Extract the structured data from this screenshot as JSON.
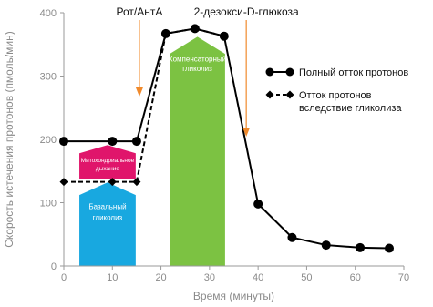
{
  "chart_data": {
    "type": "line",
    "xlabel": "Время (минуты)",
    "ylabel": "Скорость истечения протонов (пмоль/мин)",
    "xlim": [
      0,
      70
    ],
    "ylim": [
      0,
      400
    ],
    "x_ticks": [
      "0",
      "10",
      "20",
      "30",
      "40",
      "50",
      "60",
      "70"
    ],
    "y_ticks": [
      "0",
      "100",
      "200",
      "300",
      "400"
    ],
    "series": [
      {
        "name": "Полный отток протонов",
        "style": "solid-circle",
        "x": [
          0,
          10,
          15,
          21,
          27,
          33,
          40,
          47,
          54,
          61,
          67
        ],
        "y": [
          197,
          197,
          197,
          367,
          375,
          363,
          98,
          45,
          33,
          29,
          28
        ]
      },
      {
        "name": "Отток протонов вследствие гликолиза",
        "style": "dashed-diamond",
        "x": [
          0,
          10,
          15,
          21,
          27,
          33
        ],
        "y": [
          133,
          133,
          133,
          367,
          375,
          363
        ]
      }
    ],
    "legend": {
      "placement": "right",
      "solid_label": "Полный отток протонов",
      "dashed_label_line1": "Отток протонов",
      "dashed_label_line2": "вследствие гликолиза"
    },
    "annotations": {
      "injection_1": "Рот/АнтА",
      "injection_2": "2-дезокси-D-глюкоза",
      "injection_1_x": 15,
      "injection_2_x": 37
    },
    "regions": {
      "mito": {
        "line1": "Митохондриальное",
        "line2": "дыхание",
        "color": "#e0156b"
      },
      "basal": {
        "line1": "Базальный",
        "line2": "гликолиз",
        "color": "#18a8e0"
      },
      "compensatory": {
        "line1": "Компенсаторный",
        "line2": "гликолиз",
        "color": "#7cc242"
      }
    },
    "arrow_color": "#f08a2c",
    "grid": false
  }
}
